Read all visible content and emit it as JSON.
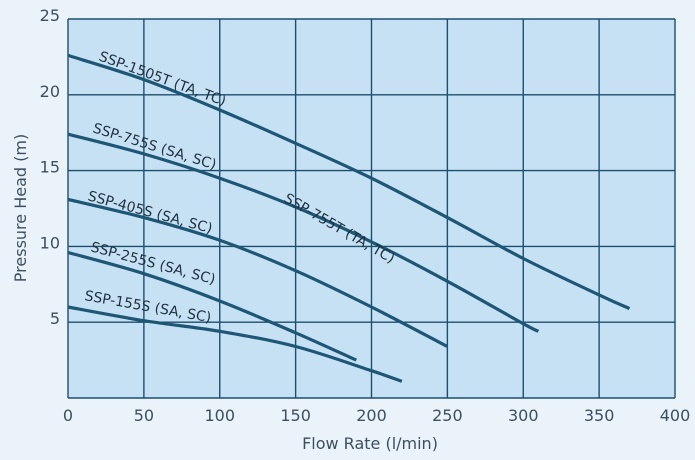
{
  "chart_data": {
    "type": "line",
    "xlabel": "Flow Rate (l/min)",
    "ylabel": "Pressure Head (m)",
    "xlim": [
      0,
      400
    ],
    "ylim": [
      0,
      25
    ],
    "x_ticks": [
      "0",
      "50",
      "100",
      "150",
      "200",
      "250",
      "300",
      "350",
      "400"
    ],
    "y_ticks": [
      "5",
      "10",
      "15",
      "20",
      "25"
    ],
    "grid": true,
    "colors": {
      "plot_bg": "#c6e1f3",
      "grid": "#1d4e6e",
      "line": "#1e5675",
      "page_bg": "#eaf3fa"
    },
    "series": [
      {
        "name": "SSP-1505T (TA, TC)",
        "x": [
          0,
          50,
          100,
          150,
          200,
          250,
          300,
          350,
          370
        ],
        "y": [
          22.6,
          21.0,
          19.0,
          16.8,
          14.5,
          11.9,
          9.2,
          6.8,
          5.9
        ]
      },
      {
        "name": "SSP-755T (TA, TC)",
        "x": [
          0,
          50,
          100,
          150,
          200,
          250,
          300,
          310
        ],
        "y": [
          17.4,
          16.1,
          14.5,
          12.6,
          10.3,
          7.7,
          4.9,
          4.4
        ]
      },
      {
        "name": "SSP-755S (SA, SC)",
        "x": [],
        "y": []
      },
      {
        "name": "SSP-405S (SA, SC)",
        "x": [
          0,
          50,
          100,
          150,
          200,
          250
        ],
        "y": [
          13.1,
          11.9,
          10.4,
          8.4,
          6.0,
          3.4
        ]
      },
      {
        "name": "SSP-255S (SA, SC)",
        "x": [
          0,
          50,
          100,
          150,
          190
        ],
        "y": [
          9.6,
          8.2,
          6.4,
          4.3,
          2.5
        ]
      },
      {
        "name": "SSP-155S (SA, SC)",
        "x": [
          0,
          50,
          100,
          150,
          200,
          220
        ],
        "y": [
          6.0,
          5.1,
          4.4,
          3.4,
          1.8,
          1.1
        ]
      }
    ]
  }
}
